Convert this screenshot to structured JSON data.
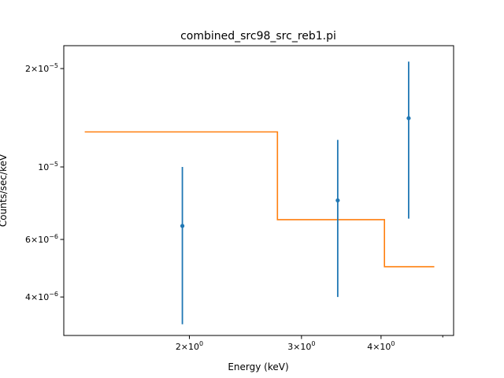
{
  "chart_data": {
    "type": "scatter",
    "title": "combined_src98_src_reb1.pi",
    "xlabel": "Energy (keV)",
    "ylabel": "Counts/sec/keV",
    "xscale": "log",
    "yscale": "log",
    "xlim": [
      1.27,
      5.2
    ],
    "ylim": [
      3.05e-06,
      2.35e-05
    ],
    "grid": false,
    "x_ticks": [
      {
        "value": 2,
        "base": "2",
        "exp": "0"
      },
      {
        "value": 3,
        "base": "3",
        "exp": "0"
      },
      {
        "value": 4,
        "base": "4",
        "exp": "0"
      }
    ],
    "x_minor_ticks": [
      5
    ],
    "y_ticks": [
      {
        "value": 4e-06,
        "base": "4",
        "exp": "−6"
      },
      {
        "value": 6e-06,
        "base": "6",
        "exp": "−6"
      },
      {
        "value": 1e-05,
        "base": "10",
        "exp": "−5",
        "simple": true
      },
      {
        "value": 2e-05,
        "base": "2",
        "exp": "−5"
      }
    ],
    "data_points": [
      {
        "x": 1.95,
        "y": 6.6e-06,
        "ylow": 3.3e-06,
        "yhigh": 1e-05
      },
      {
        "x": 3.42,
        "y": 7.9e-06,
        "ylow": 4e-06,
        "yhigh": 1.21e-05
      },
      {
        "x": 4.42,
        "y": 1.41e-05,
        "ylow": 6.95e-06,
        "yhigh": 2.1e-05
      }
    ],
    "model_steps": [
      {
        "x0": 1.37,
        "x1": 2.75,
        "y": 1.28e-05
      },
      {
        "x0": 2.75,
        "x1": 4.05,
        "y": 6.9e-06
      },
      {
        "x0": 4.05,
        "x1": 4.85,
        "y": 4.95e-06
      }
    ],
    "colors": {
      "data": "#1f77b4",
      "model": "#ff7f0e"
    }
  }
}
